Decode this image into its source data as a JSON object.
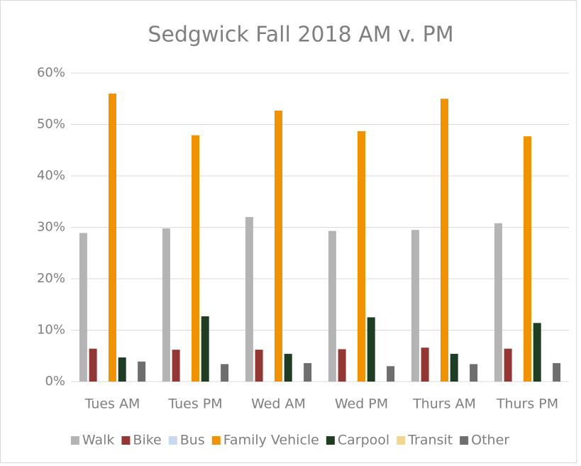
{
  "chart_data": {
    "type": "bar",
    "title": "Sedgwick Fall 2018 AM v. PM",
    "categories": [
      "Tues AM",
      "Tues PM",
      "Wed AM",
      "Wed PM",
      "Thurs AM",
      "Thurs PM"
    ],
    "series": [
      {
        "name": "Walk",
        "color": "#b4b4b4",
        "values": [
          28.9,
          29.8,
          32.0,
          29.3,
          29.5,
          30.8
        ]
      },
      {
        "name": "Bike",
        "color": "#943634",
        "values": [
          6.4,
          6.2,
          6.2,
          6.3,
          6.6,
          6.4
        ]
      },
      {
        "name": "Bus",
        "color": "#c6d9f0",
        "values": [
          0,
          0,
          0,
          0,
          0,
          0
        ]
      },
      {
        "name": "Family Vehicle",
        "color": "#f39200",
        "values": [
          56.0,
          47.9,
          52.7,
          48.7,
          55.0,
          47.7
        ]
      },
      {
        "name": "Carpool",
        "color": "#1f3d22",
        "values": [
          4.7,
          12.7,
          5.4,
          12.5,
          5.4,
          11.4
        ]
      },
      {
        "name": "Transit",
        "color": "#f2d58f",
        "values": [
          0,
          0,
          0,
          0,
          0,
          0
        ]
      },
      {
        "name": "Other",
        "color": "#6e6e6e",
        "values": [
          3.9,
          3.4,
          3.6,
          3.0,
          3.4,
          3.6
        ]
      }
    ],
    "ylim": [
      0,
      60
    ],
    "yticks": [
      {
        "value": 0,
        "label": "0%"
      },
      {
        "value": 10,
        "label": "10%"
      },
      {
        "value": 20,
        "label": "20%"
      },
      {
        "value": 30,
        "label": "30%"
      },
      {
        "value": 40,
        "label": "40%"
      },
      {
        "value": 50,
        "label": "50%"
      },
      {
        "value": 60,
        "label": "60%"
      }
    ],
    "grid": true,
    "legend": "bottom"
  }
}
